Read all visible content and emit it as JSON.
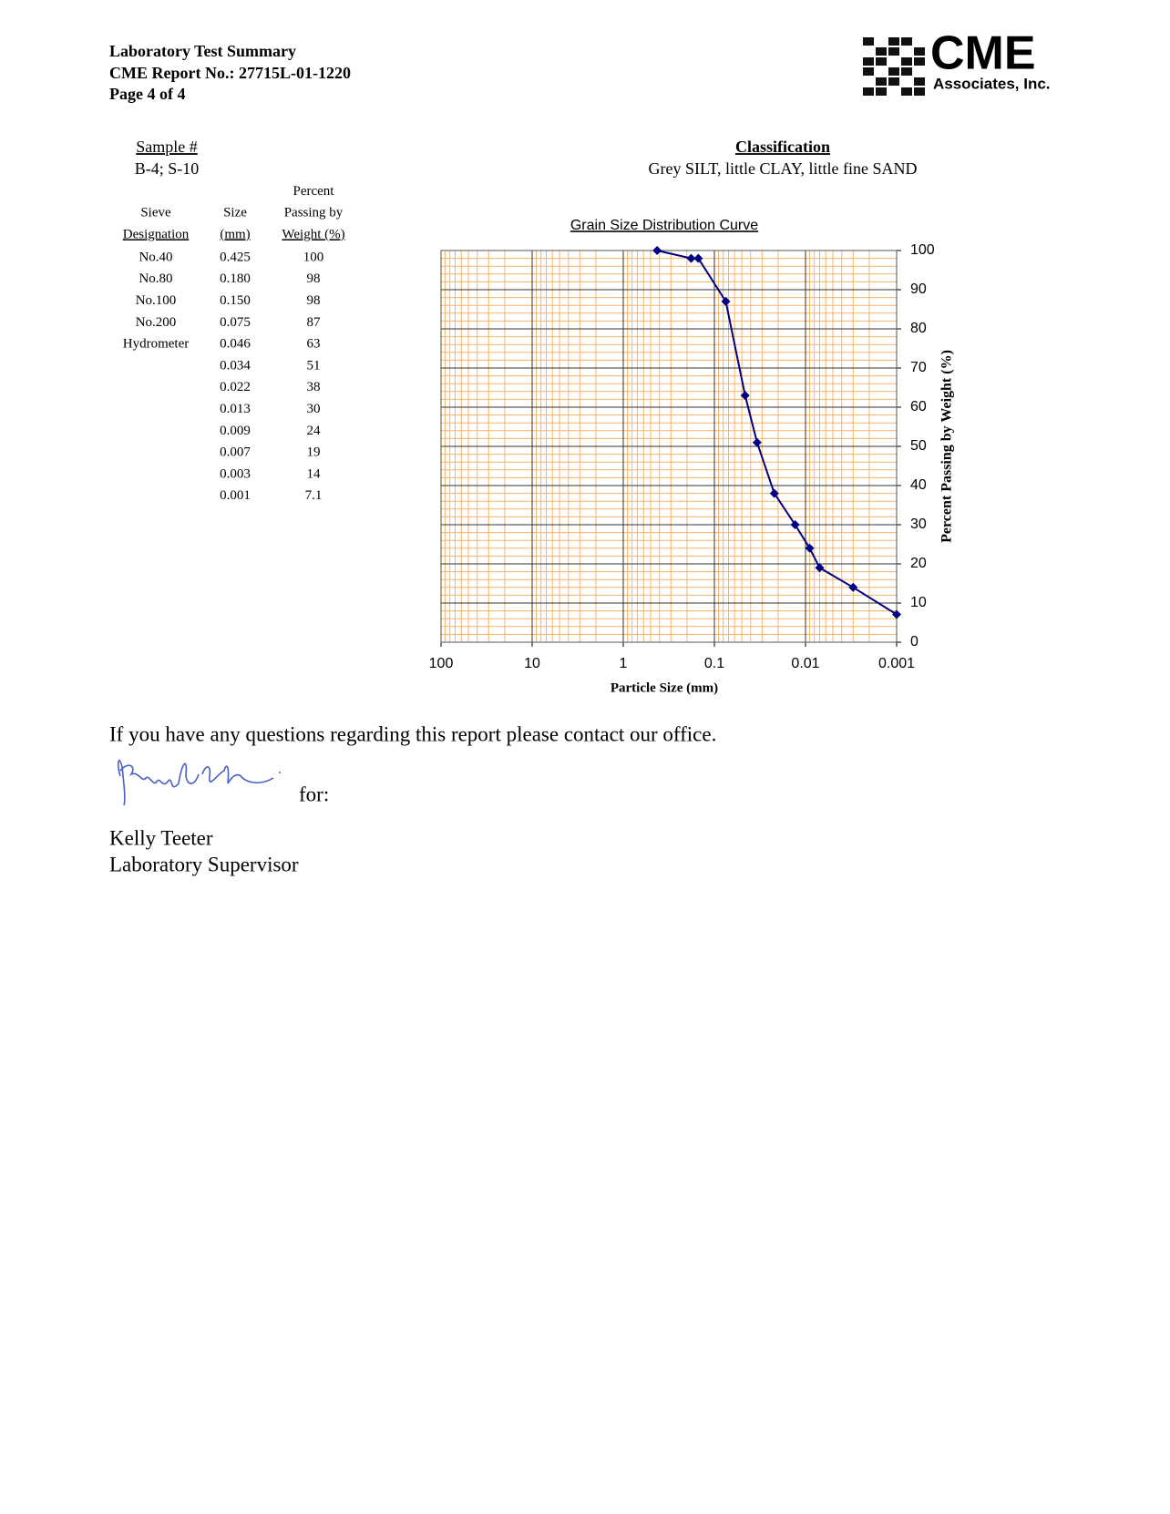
{
  "header": {
    "lines": [
      "Laboratory Test Summary",
      "CME Report No.: 27715L-01-1220",
      "Page 4 of 4"
    ]
  },
  "logo": {
    "name": "CME",
    "sub": "Associates, Inc."
  },
  "sample": {
    "label": "Sample #",
    "value": "B-4; S-10"
  },
  "classification": {
    "label": "Classification",
    "value": "Grey SILT, little CLAY, little fine SAND"
  },
  "table": {
    "columns": [
      [
        "Sieve",
        "Designation"
      ],
      [
        "Size",
        "(mm)"
      ],
      [
        "Percent",
        "Passing by",
        "Weight (%)"
      ]
    ],
    "rows": [
      {
        "sieve": "No.40",
        "size": "0.425",
        "percent": "100"
      },
      {
        "sieve": "No.80",
        "size": "0.180",
        "percent": "98"
      },
      {
        "sieve": "No.100",
        "size": "0.150",
        "percent": "98"
      },
      {
        "sieve": "No.200",
        "size": "0.075",
        "percent": "87"
      },
      {
        "sieve": "Hydrometer",
        "size": "0.046",
        "percent": "63"
      },
      {
        "size": "0.034",
        "percent": "51"
      },
      {
        "size": "0.022",
        "percent": "38"
      },
      {
        "size": "0.013",
        "percent": "30"
      },
      {
        "size": "0.009",
        "percent": "24"
      },
      {
        "size": "0.007",
        "percent": "19"
      },
      {
        "size": "0.003",
        "percent": "14"
      },
      {
        "size": "0.001",
        "percent": "7.1"
      }
    ]
  },
  "chart_data": {
    "type": "line",
    "title": "Grain Size Distribution Curve",
    "x_label": "Particle Size (mm)",
    "y_label": "Percent Passing by Weight (%)",
    "x_scale": "log",
    "xlim": [
      100,
      0.001
    ],
    "xticks": [
      100,
      10,
      1,
      0.1,
      0.01,
      0.001
    ],
    "ylim": [
      0,
      100
    ],
    "yticks": [
      0,
      10,
      20,
      30,
      40,
      50,
      60,
      70,
      80,
      90,
      100
    ],
    "grid": true,
    "minor_grid_color": "#f7b36a",
    "major_grid_color": "#333333",
    "x": [
      0.425,
      0.18,
      0.15,
      0.075,
      0.046,
      0.034,
      0.022,
      0.013,
      0.009,
      0.007,
      0.003,
      0.001
    ],
    "series": [
      {
        "color": "#000080",
        "values": [
          100,
          98,
          98,
          87,
          63,
          51,
          38,
          30,
          24,
          19,
          14,
          7.1
        ]
      }
    ]
  },
  "footer": {
    "note": "If you have any questions regarding this report please contact our office.",
    "for": "for:",
    "name": "Kelly Teeter",
    "role": "Laboratory Supervisor"
  }
}
